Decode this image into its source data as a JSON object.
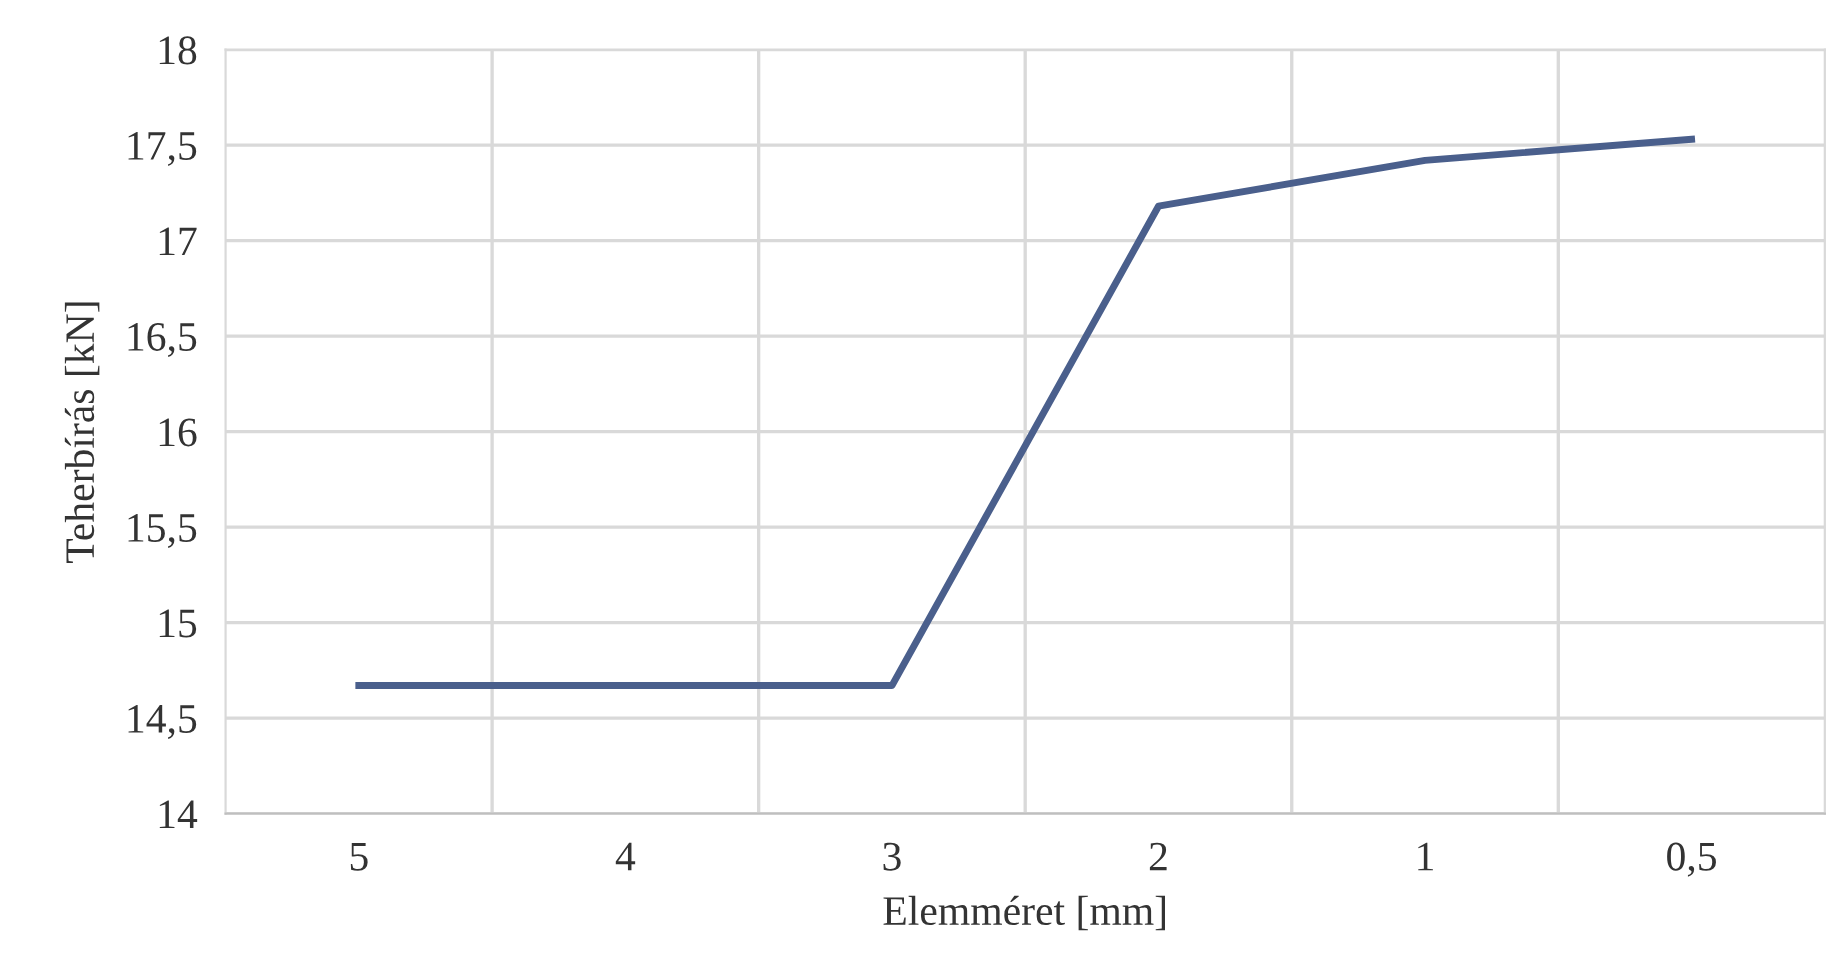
{
  "chart_data": {
    "type": "line",
    "xlabel": "Elemméret [mm]",
    "ylabel": "Teherbírás [kN]",
    "categories": [
      "5",
      "4",
      "3",
      "2",
      "1",
      "0,5"
    ],
    "series": [
      {
        "color": "#4a5f8c",
        "values": [
          14.67,
          14.67,
          14.67,
          17.18,
          17.42,
          17.53
        ]
      }
    ],
    "ylim": [
      14,
      18
    ],
    "yticks": [
      14,
      {
        "value": 14.5,
        "label": "14,5"
      },
      15,
      {
        "value": 15.5,
        "label": "15,5"
      },
      16,
      {
        "value": 16.5,
        "label": "16,5"
      },
      17,
      {
        "value": 17.5,
        "label": "17,5"
      },
      18
    ],
    "grid": true,
    "marker": "none",
    "line_style": "solid"
  }
}
